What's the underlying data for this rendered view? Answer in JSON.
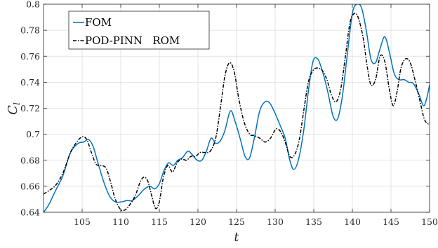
{
  "chart_data": {
    "type": "line",
    "xlabel": "t",
    "ylabel": "C",
    "ylabel_subscript": "l",
    "xlim": [
      100,
      150
    ],
    "ylim": [
      0.64,
      0.8
    ],
    "x_ticks": [
      105,
      110,
      115,
      120,
      125,
      130,
      135,
      140,
      145,
      150
    ],
    "y_ticks": [
      0.64,
      0.66,
      0.68,
      0.7,
      0.72,
      0.74,
      0.76,
      0.78,
      0.8
    ],
    "x_tick_labels": [
      "105",
      "110",
      "115",
      "120",
      "125",
      "130",
      "135",
      "140",
      "145",
      "150"
    ],
    "y_tick_labels": [
      "0.64",
      "0.66",
      "0.68",
      "0.7",
      "0.72",
      "0.74",
      "0.76",
      "0.78",
      "0.8"
    ],
    "grid": true,
    "legend_position": "top-left",
    "series": [
      {
        "name": "FOM",
        "color": "#0072BD",
        "dash": "solid",
        "points": [
          [
            100,
            0.64
          ],
          [
            100.7,
            0.646
          ],
          [
            101.5,
            0.656
          ],
          [
            102.5,
            0.668
          ],
          [
            103.5,
            0.686
          ],
          [
            104.5,
            0.693
          ],
          [
            105.2,
            0.694
          ],
          [
            105.8,
            0.696
          ],
          [
            106.4,
            0.691
          ],
          [
            107,
            0.679
          ],
          [
            107.5,
            0.669
          ],
          [
            108,
            0.66
          ],
          [
            108.6,
            0.652
          ],
          [
            109.3,
            0.648
          ],
          [
            110.1,
            0.648
          ],
          [
            110.8,
            0.649
          ],
          [
            111.5,
            0.649
          ],
          [
            112.3,
            0.653
          ],
          [
            113.1,
            0.658
          ],
          [
            113.8,
            0.66
          ],
          [
            114.4,
            0.658
          ],
          [
            115,
            0.662
          ],
          [
            115.6,
            0.672
          ],
          [
            116.2,
            0.678
          ],
          [
            116.8,
            0.676
          ],
          [
            117.4,
            0.68
          ],
          [
            118,
            0.682
          ],
          [
            118.7,
            0.687
          ],
          [
            119.3,
            0.684
          ],
          [
            119.9,
            0.68
          ],
          [
            120.5,
            0.68
          ],
          [
            121.1,
            0.687
          ],
          [
            121.7,
            0.697
          ],
          [
            122.3,
            0.693
          ],
          [
            122.9,
            0.695
          ],
          [
            123.5,
            0.703
          ],
          [
            124.2,
            0.718
          ],
          [
            124.8,
            0.71
          ],
          [
            125.5,
            0.696
          ],
          [
            126.1,
            0.683
          ],
          [
            126.7,
            0.682
          ],
          [
            127.4,
            0.7
          ],
          [
            128,
            0.718
          ],
          [
            128.7,
            0.725
          ],
          [
            129.3,
            0.724
          ],
          [
            130,
            0.716
          ],
          [
            130.7,
            0.706
          ],
          [
            131.3,
            0.697
          ],
          [
            131.9,
            0.68
          ],
          [
            132.4,
            0.673
          ],
          [
            133,
            0.68
          ],
          [
            133.7,
            0.703
          ],
          [
            134.3,
            0.733
          ],
          [
            134.9,
            0.756
          ],
          [
            135.5,
            0.758
          ],
          [
            136.1,
            0.749
          ],
          [
            136.8,
            0.733
          ],
          [
            137.5,
            0.714
          ],
          [
            138.1,
            0.712
          ],
          [
            138.7,
            0.729
          ],
          [
            139.3,
            0.759
          ],
          [
            140,
            0.793
          ],
          [
            140.6,
            0.8
          ],
          [
            141.2,
            0.797
          ],
          [
            141.8,
            0.78
          ],
          [
            142.4,
            0.758
          ],
          [
            143,
            0.755
          ],
          [
            143.6,
            0.766
          ],
          [
            144.2,
            0.775
          ],
          [
            144.8,
            0.763
          ],
          [
            145.4,
            0.747
          ],
          [
            146,
            0.742
          ],
          [
            146.7,
            0.742
          ],
          [
            147.3,
            0.74
          ],
          [
            147.9,
            0.739
          ],
          [
            148.6,
            0.731
          ],
          [
            149.2,
            0.722
          ],
          [
            149.6,
            0.727
          ],
          [
            150,
            0.738
          ]
        ]
      },
      {
        "name": "POD-PINN   ROM",
        "color": "#000000",
        "dash": "dashdot",
        "points": [
          [
            100,
            0.654
          ],
          [
            100.8,
            0.657
          ],
          [
            101.6,
            0.661
          ],
          [
            102.5,
            0.67
          ],
          [
            103.5,
            0.686
          ],
          [
            104.3,
            0.694
          ],
          [
            105,
            0.698
          ],
          [
            105.6,
            0.696
          ],
          [
            106.2,
            0.686
          ],
          [
            106.8,
            0.677
          ],
          [
            107.4,
            0.676
          ],
          [
            108.1,
            0.674
          ],
          [
            108.7,
            0.663
          ],
          [
            109.3,
            0.65
          ],
          [
            110,
            0.642
          ],
          [
            110.6,
            0.642
          ],
          [
            111.2,
            0.646
          ],
          [
            111.9,
            0.653
          ],
          [
            112.5,
            0.663
          ],
          [
            113,
            0.667
          ],
          [
            113.5,
            0.664
          ],
          [
            114,
            0.653
          ],
          [
            114.5,
            0.643
          ],
          [
            115,
            0.648
          ],
          [
            115.5,
            0.666
          ],
          [
            116.1,
            0.676
          ],
          [
            116.7,
            0.671
          ],
          [
            117.3,
            0.678
          ],
          [
            117.9,
            0.681
          ],
          [
            118.5,
            0.68
          ],
          [
            119.1,
            0.683
          ],
          [
            119.7,
            0.683
          ],
          [
            120.3,
            0.686
          ],
          [
            121,
            0.686
          ],
          [
            121.6,
            0.687
          ],
          [
            122.3,
            0.697
          ],
          [
            122.9,
            0.72
          ],
          [
            123.5,
            0.745
          ],
          [
            124.1,
            0.755
          ],
          [
            124.7,
            0.748
          ],
          [
            125.3,
            0.727
          ],
          [
            126,
            0.709
          ],
          [
            126.7,
            0.7
          ],
          [
            127.3,
            0.699
          ],
          [
            128,
            0.697
          ],
          [
            128.7,
            0.694
          ],
          [
            129.4,
            0.697
          ],
          [
            130.1,
            0.704
          ],
          [
            130.7,
            0.702
          ],
          [
            131.3,
            0.694
          ],
          [
            131.9,
            0.683
          ],
          [
            132.5,
            0.684
          ],
          [
            133.1,
            0.695
          ],
          [
            133.7,
            0.718
          ],
          [
            134.3,
            0.74
          ],
          [
            134.9,
            0.749
          ],
          [
            135.5,
            0.751
          ],
          [
            136.1,
            0.749
          ],
          [
            136.7,
            0.742
          ],
          [
            137.3,
            0.73
          ],
          [
            137.9,
            0.725
          ],
          [
            138.5,
            0.735
          ],
          [
            139.1,
            0.76
          ],
          [
            139.7,
            0.786
          ],
          [
            140.3,
            0.793
          ],
          [
            140.8,
            0.789
          ],
          [
            141.4,
            0.774
          ],
          [
            141.9,
            0.753
          ],
          [
            142.4,
            0.738
          ],
          [
            143,
            0.742
          ],
          [
            143.6,
            0.76
          ],
          [
            144.2,
            0.756
          ],
          [
            144.8,
            0.734
          ],
          [
            145.3,
            0.722
          ],
          [
            145.8,
            0.733
          ],
          [
            146.3,
            0.751
          ],
          [
            146.9,
            0.758
          ],
          [
            147.5,
            0.755
          ],
          [
            148.1,
            0.742
          ],
          [
            148.7,
            0.727
          ],
          [
            149.3,
            0.712
          ],
          [
            149.8,
            0.708
          ],
          [
            150,
            0.709
          ]
        ]
      }
    ]
  }
}
